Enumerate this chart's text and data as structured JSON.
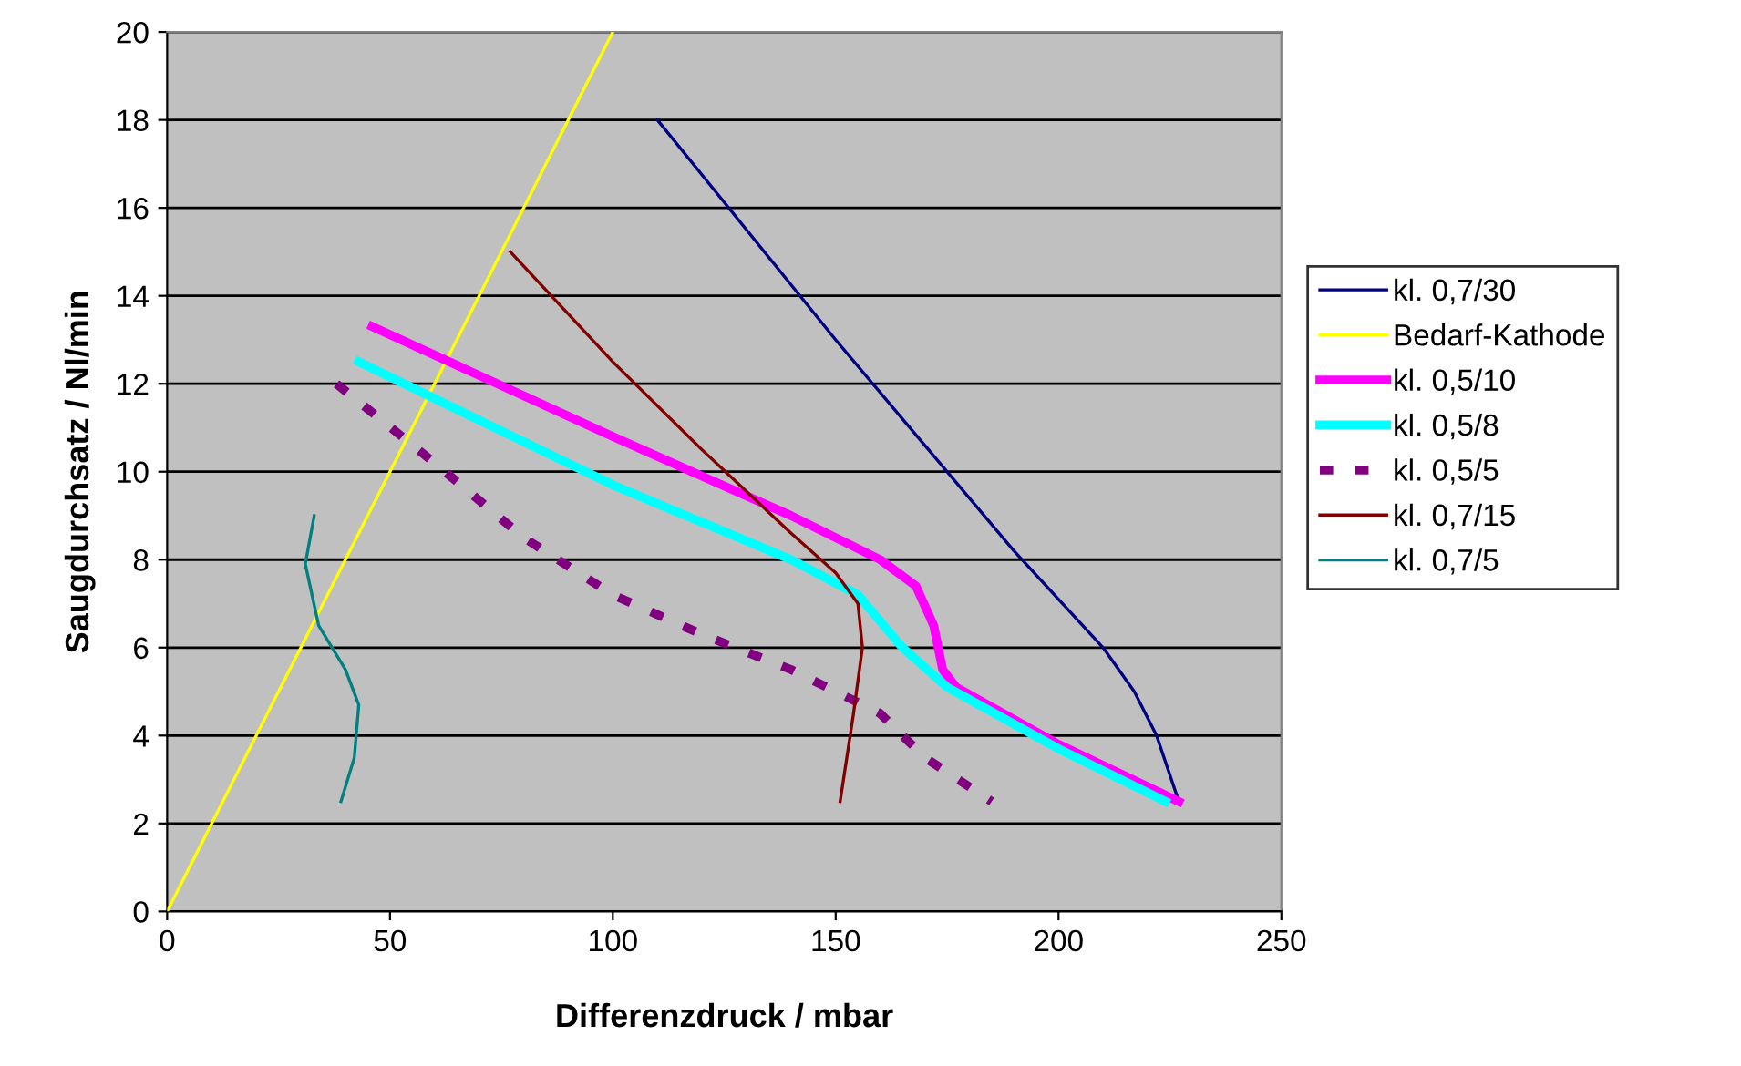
{
  "chart_data": {
    "type": "line",
    "xlabel": "Differenzdruck / mbar",
    "ylabel": "Saugdurchsatz / Nl/min",
    "xlim": [
      0,
      250
    ],
    "xticks": [
      0,
      50,
      100,
      150,
      200,
      250
    ],
    "ylim": [
      0,
      20
    ],
    "yticks": [
      0,
      2,
      4,
      6,
      8,
      10,
      12,
      14,
      16,
      18,
      20
    ],
    "grid": "y",
    "legend": "right",
    "marker": "none",
    "series": [
      {
        "name": "kl. 0,7/30",
        "color": "#000080",
        "x": [
          110,
          150,
          190,
          210,
          217,
          222,
          227
        ],
        "values": [
          18,
          13,
          8.2,
          6,
          5,
          4,
          2.5
        ]
      },
      {
        "name": "Bedarf-Kathode",
        "color": "#ffff00",
        "x": [
          0,
          100
        ],
        "values": [
          0,
          20
        ]
      },
      {
        "name": "kl. 0,5/10",
        "color": "#ff00ff",
        "x": [
          46,
          100,
          140,
          160,
          168,
          172,
          174,
          177,
          200,
          227
        ],
        "values": [
          13.3,
          10.8,
          9,
          8,
          7.4,
          6.5,
          5.5,
          5.1,
          3.8,
          2.5
        ]
      },
      {
        "name": "kl. 0,5/8",
        "color": "#00ffff",
        "x": [
          43,
          100,
          140,
          155,
          165,
          175,
          200,
          224
        ],
        "values": [
          12.5,
          9.7,
          8,
          7.2,
          6,
          5.1,
          3.7,
          2.5
        ]
      },
      {
        "name": "kl. 0,5/5",
        "color": "#800080",
        "line_style": "dashed",
        "x": [
          38,
          60,
          80,
          100,
          120,
          140,
          150,
          160,
          170,
          185
        ],
        "values": [
          12,
          10.2,
          8.5,
          7.2,
          6.3,
          5.5,
          5,
          4.5,
          3.5,
          2.5
        ]
      },
      {
        "name": "kl. 0,7/15",
        "color": "#800000",
        "x": [
          77,
          100,
          120,
          140,
          150,
          155,
          156,
          154,
          151
        ],
        "values": [
          15,
          12.5,
          10.5,
          8.6,
          7.7,
          7,
          6,
          4.5,
          2.5
        ]
      },
      {
        "name": "kl. 0,7/5",
        "color": "#008080",
        "x": [
          33,
          31,
          34,
          40,
          43,
          42,
          39
        ],
        "values": [
          9,
          7.9,
          6.5,
          5.5,
          4.7,
          3.5,
          2.5
        ]
      }
    ]
  }
}
